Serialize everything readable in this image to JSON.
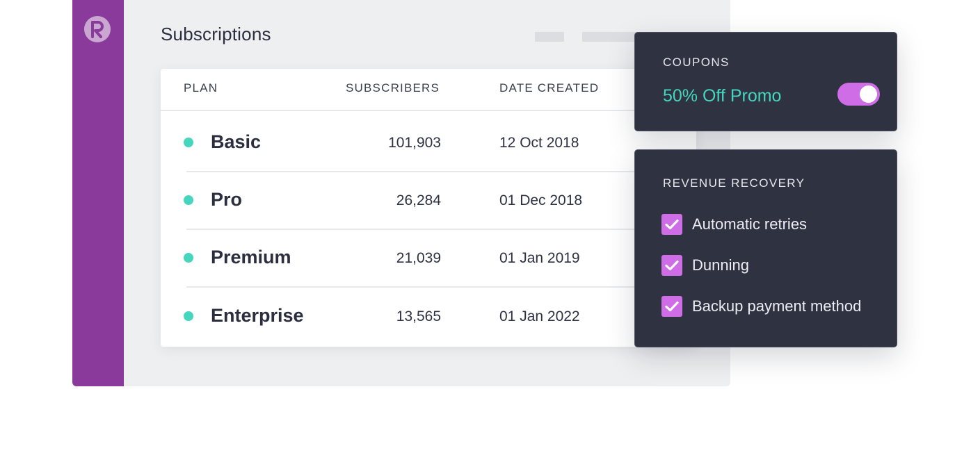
{
  "app": {
    "logo_letter": "R"
  },
  "page": {
    "title": "Subscriptions"
  },
  "table": {
    "headers": {
      "plan": "PLAN",
      "subscribers": "SUBSCRIBERS",
      "date_created": "DATE CREATED"
    },
    "rows": [
      {
        "plan": "Basic",
        "subscribers": "101,903",
        "date": "12 Oct 2018"
      },
      {
        "plan": "Pro",
        "subscribers": "26,284",
        "date": "01 Dec 2018"
      },
      {
        "plan": "Premium",
        "subscribers": "21,039",
        "date": "01 Jan 2019"
      },
      {
        "plan": "Enterprise",
        "subscribers": "13,565",
        "date": "01 Jan 2022"
      }
    ],
    "status_color": "#45d6bd"
  },
  "coupons": {
    "heading": "COUPONS",
    "promo_label": "50% Off Promo",
    "toggle_on": true
  },
  "revenue_recovery": {
    "heading": "REVENUE RECOVERY",
    "options": [
      {
        "label": "Automatic retries",
        "checked": true
      },
      {
        "label": "Dunning",
        "checked": true
      },
      {
        "label": "Backup payment method",
        "checked": true
      }
    ]
  },
  "colors": {
    "sidebar": "#8a3a9b",
    "accent": "#cf6de6",
    "panel_bg": "#2e3241",
    "teal": "#45d6bd"
  }
}
